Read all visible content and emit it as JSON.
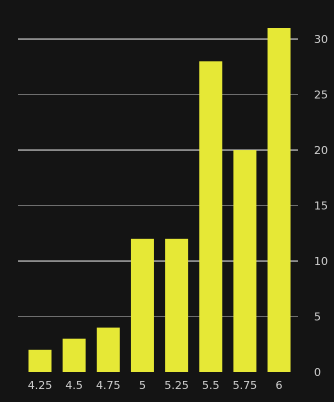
{
  "chart_data": {
    "type": "bar",
    "categories": [
      "4.25",
      "4.5",
      "4.75",
      "5",
      "5.25",
      "5.5",
      "5.75",
      "6"
    ],
    "values": [
      2,
      3,
      4,
      12,
      12,
      28,
      20,
      31
    ],
    "title": "",
    "xlabel": "",
    "ylabel": "",
    "ylim": [
      0,
      31
    ],
    "y_ticks": [
      "0",
      "5",
      "10",
      "15",
      "20",
      "25",
      "30"
    ],
    "grid": true,
    "y_axis_side": "right",
    "colors": {
      "background": "#141414",
      "bar": "#e6e836",
      "grid": "#d0d0d0",
      "tick_text": "#cfcfcf"
    }
  }
}
